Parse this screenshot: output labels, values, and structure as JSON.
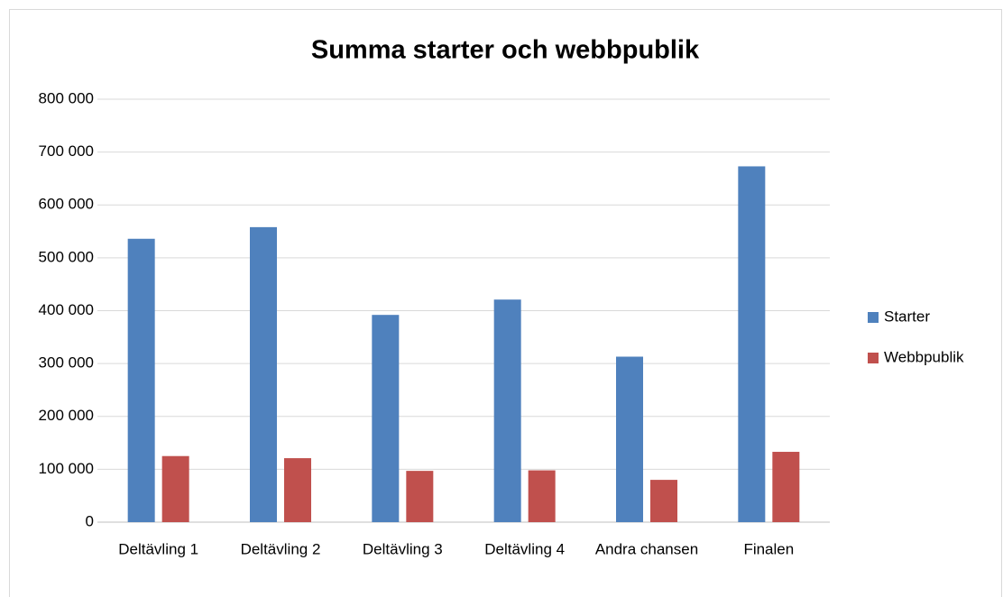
{
  "chart_data": {
    "type": "bar",
    "title": "Summa starter och webbpublik",
    "categories": [
      "Deltävling 1",
      "Deltävling 2",
      "Deltävling 3",
      "Deltävling 4",
      "Andra chansen",
      "Finalen"
    ],
    "series": [
      {
        "name": "Starter",
        "color": "#4f81bd",
        "values": [
          536000,
          558000,
          392000,
          421000,
          313000,
          673000
        ]
      },
      {
        "name": "Webbpublik",
        "color": "#c0504d",
        "values": [
          125000,
          121000,
          97000,
          98000,
          80000,
          133000
        ]
      }
    ],
    "ylim": [
      0,
      800000
    ],
    "yticks": [
      0,
      {
        "value": 100000,
        "label": "100 000"
      },
      {
        "value": 200000,
        "label": "200 000"
      },
      {
        "value": 300000,
        "label": "300 000"
      },
      {
        "value": 400000,
        "label": "400 000"
      },
      {
        "value": 500000,
        "label": "500 000"
      },
      {
        "value": 600000,
        "label": "600 000"
      },
      {
        "value": 700000,
        "label": "700 000"
      },
      {
        "value": 800000,
        "label": "800 000"
      }
    ],
    "grid": true,
    "legend": "right"
  }
}
